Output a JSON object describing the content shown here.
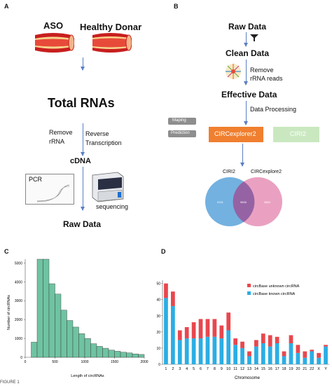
{
  "panels": {
    "a": "A",
    "b": "B",
    "c": "C",
    "d": "D"
  },
  "panelA": {
    "aso": "ASO",
    "healthy_donor": "Healthy Donar",
    "total_rnas": "Total RNAs",
    "remove_rrna": [
      "Remove",
      "rRNA"
    ],
    "reverse_transcription": [
      "Reverse",
      "Transcription"
    ],
    "cdna": "cDNA",
    "pcr": "PCR",
    "sequencing": "sequencing",
    "raw_data": "Raw Data"
  },
  "panelB": {
    "raw_data": "Raw Data",
    "clean_data": "Clean Data",
    "remove_rrna_reads": [
      "Remove",
      "rRNA reads"
    ],
    "effective_data": "Effective Data",
    "data_processing": "Data Processing",
    "maping": "Maping",
    "prediction": "Prediction",
    "circexplorer2": "CIRCexplorer2",
    "ciri2": "CIRI2",
    "venn_left_label": "CIRI2",
    "venn_right_label": "CIRCexplore2",
    "venn_left_value": "5151",
    "venn_center_value": "9826",
    "venn_right_value": "3863",
    "colors": {
      "orange": "#f07f2f",
      "green": "#c9e8c0",
      "blue": "#64a8dd",
      "pink": "#e690b6"
    }
  },
  "chart_data": [
    {
      "type": "bar",
      "panel": "C",
      "xlabel": "Length of circRNAs",
      "ylabel": "Number of circRNAs",
      "xticks": [
        "0",
        "500",
        "1000",
        "1500",
        "2000"
      ],
      "yticks": [
        "0",
        "1000",
        "2000",
        "3000",
        "4000",
        "5000"
      ],
      "xlim": [
        0,
        2000
      ],
      "ylim": [
        0,
        5200
      ],
      "bin_width": 100,
      "bin_starts": [
        100,
        200,
        300,
        400,
        500,
        600,
        700,
        800,
        900,
        1000,
        1100,
        1200,
        1300,
        1400,
        1500,
        1600,
        1700,
        1800,
        1900
      ],
      "values": [
        800,
        5200,
        5200,
        3900,
        3350,
        2500,
        1950,
        1600,
        1250,
        1000,
        720,
        580,
        480,
        380,
        320,
        270,
        230,
        180,
        150
      ],
      "color": "#6fc3a2"
    },
    {
      "type": "bar",
      "panel": "D",
      "stacked": true,
      "xlabel": "Chromosome",
      "categories": [
        "1",
        "2",
        "3",
        "4",
        "5",
        "6",
        "7",
        "8",
        "9",
        "10",
        "11",
        "12",
        "13",
        "14",
        "15",
        "16",
        "17",
        "18",
        "19",
        "20",
        "21",
        "22",
        "X",
        "Y"
      ],
      "yticks": [
        "0",
        "10",
        "20",
        "30",
        "40",
        "50"
      ],
      "ylim": [
        0,
        52
      ],
      "series": [
        {
          "name": "circBase known circRNA",
          "color": "#2baee4",
          "values": [
            41,
            36,
            15,
            16,
            16,
            16,
            17,
            17,
            16,
            21,
            12,
            10,
            5,
            11,
            13,
            11,
            13,
            5,
            13,
            7,
            4,
            8,
            4,
            11
          ]
        },
        {
          "name": "circBase unknown circRNA",
          "color": "#e8474e",
          "values": [
            9,
            9,
            6,
            7,
            10,
            12,
            11,
            11,
            8,
            11,
            4,
            4,
            3,
            4,
            6,
            7,
            4,
            3,
            5,
            5,
            4,
            1,
            3,
            1
          ]
        }
      ],
      "legend_position": "top-right"
    }
  ],
  "figure_label": "FIGURE 1"
}
